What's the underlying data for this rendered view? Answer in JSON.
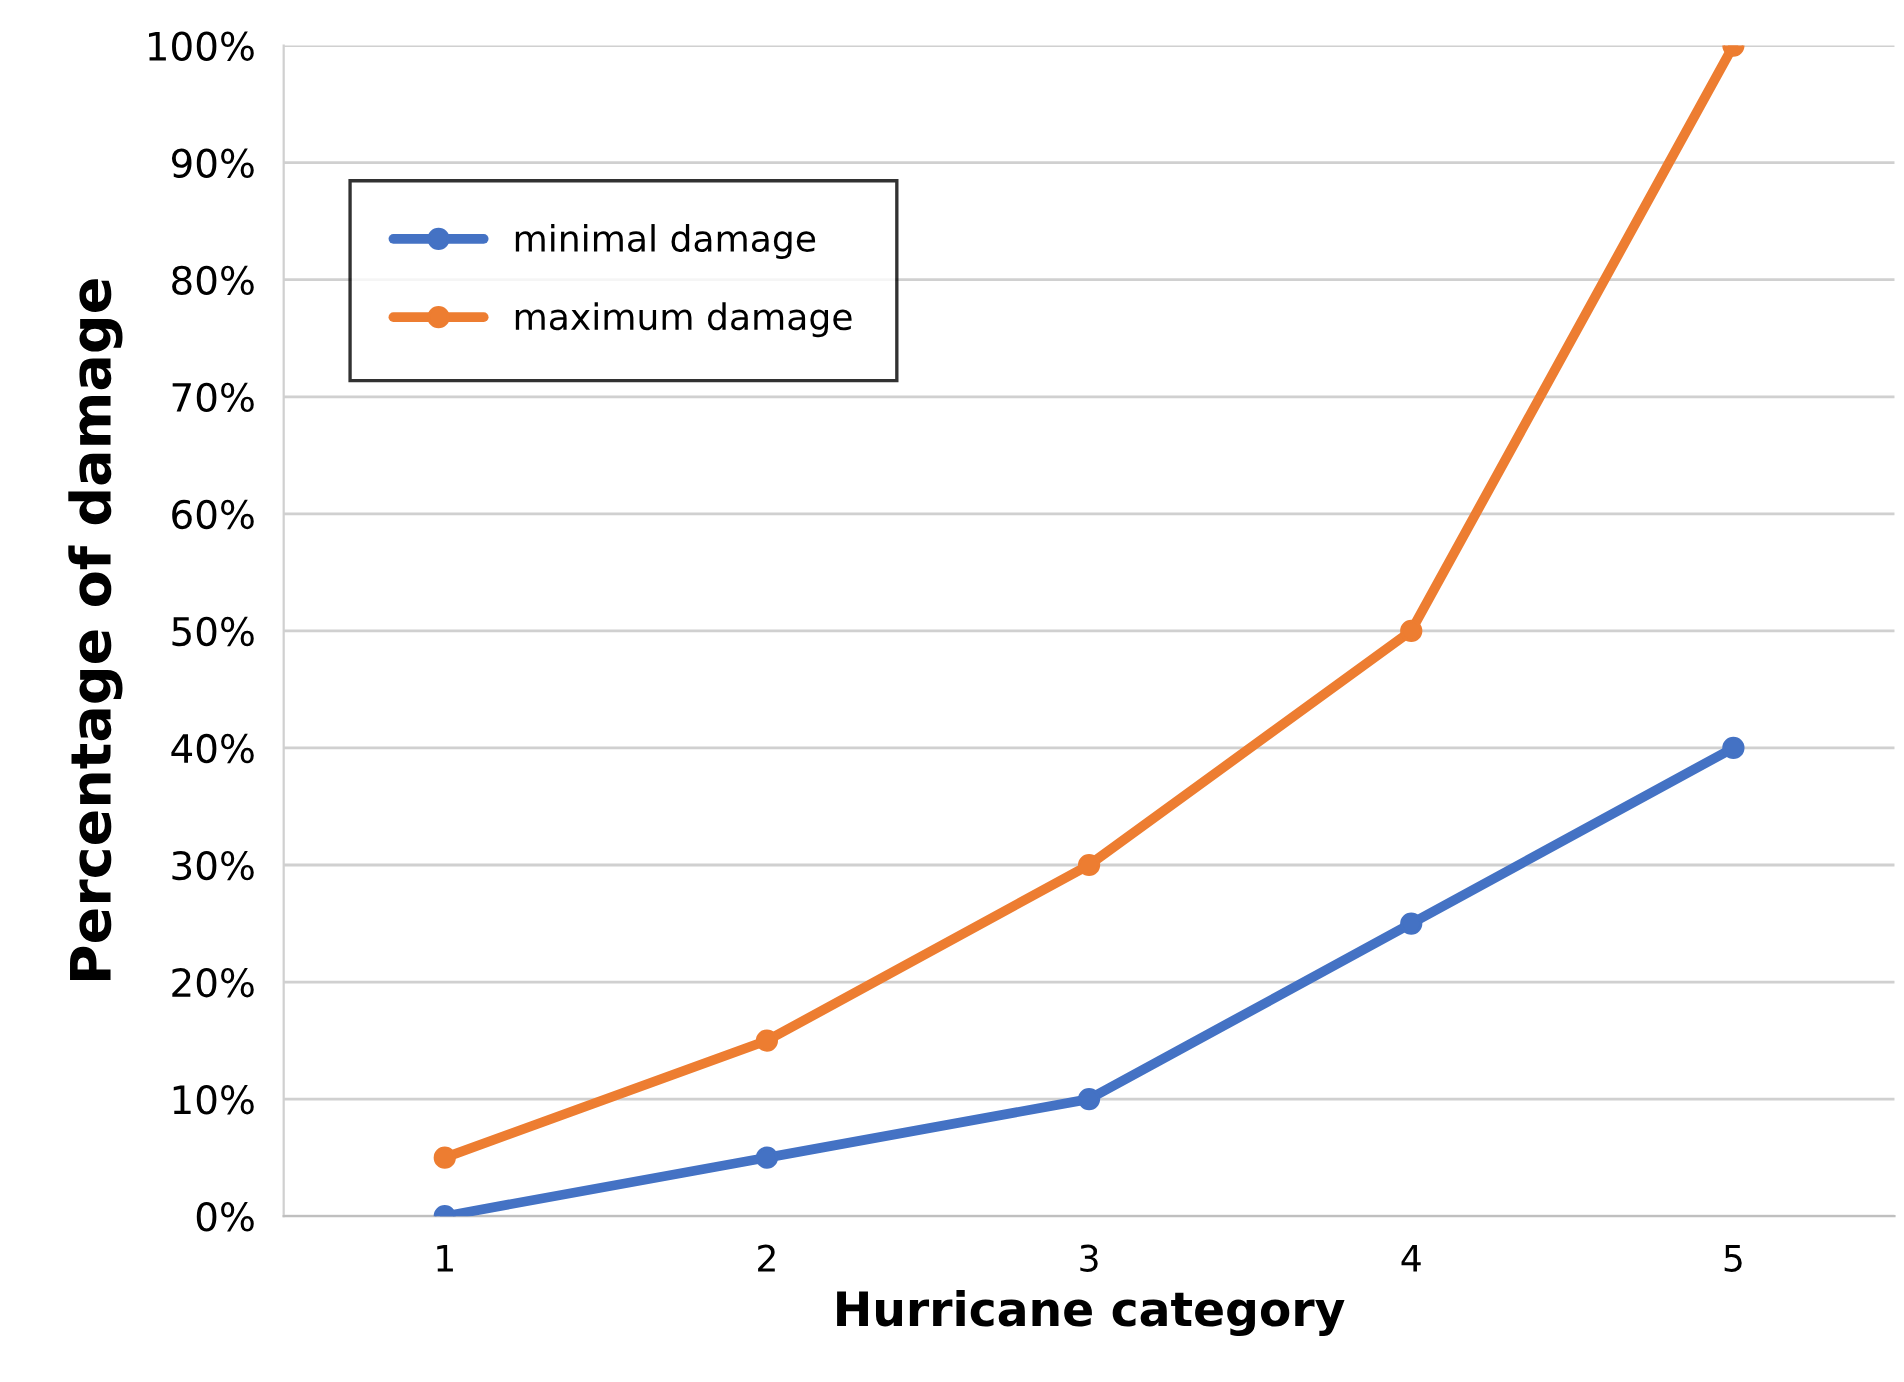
{
  "chart_data": {
    "type": "line",
    "xlabel": "Hurricane category",
    "ylabel": "Percentage of damage",
    "categories": [
      "1",
      "2",
      "3",
      "4",
      "5"
    ],
    "series": [
      {
        "name": "minimal damage",
        "color": "#4472c4",
        "values": [
          0,
          5,
          10,
          25,
          40
        ]
      },
      {
        "name": "maximum damage",
        "color": "#ed7d31",
        "values": [
          5,
          15,
          30,
          50,
          100
        ]
      }
    ],
    "ylim": [
      0,
      100
    ],
    "yticks": [
      {
        "value": 0,
        "label": "0%"
      },
      {
        "value": 10,
        "label": "10%"
      },
      {
        "value": 20,
        "label": "20%"
      },
      {
        "value": 30,
        "label": "30%"
      },
      {
        "value": 40,
        "label": "40%"
      },
      {
        "value": 50,
        "label": "50%"
      },
      {
        "value": 60,
        "label": "60%"
      },
      {
        "value": 70,
        "label": "70%"
      },
      {
        "value": 80,
        "label": "80%"
      },
      {
        "value": 90,
        "label": "90%"
      },
      {
        "value": 100,
        "label": "100%"
      }
    ],
    "grid": "y",
    "legend": "top left",
    "marker": "circle",
    "line_style": "solid"
  }
}
